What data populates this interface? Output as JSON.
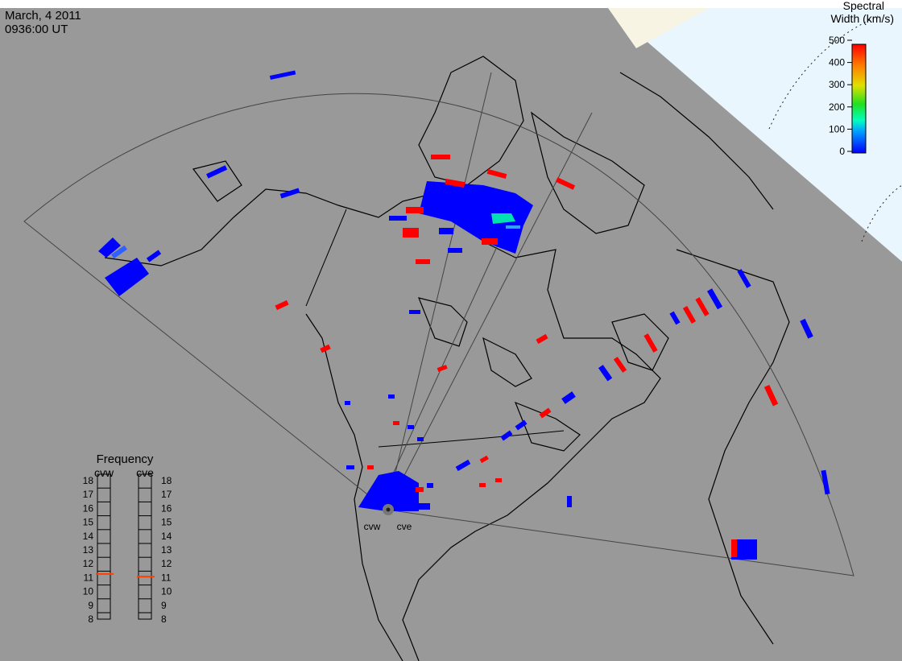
{
  "header": {
    "date": "March, 4 2011",
    "time": "0936:00 UT"
  },
  "colorbar": {
    "title_lines": [
      "Spectral",
      "Width (km/s)"
    ],
    "lim": [
      0,
      500
    ],
    "ticks": [
      0,
      100,
      200,
      300,
      400,
      500
    ]
  },
  "frequency": {
    "title": "Frequency",
    "lim": [
      8,
      18
    ],
    "ticks": [
      8,
      9,
      10,
      11,
      12,
      13,
      14,
      15,
      16,
      17,
      18
    ],
    "radars": [
      {
        "name": "cvw",
        "value": 10.8
      },
      {
        "name": "cve",
        "value": 10.6
      }
    ]
  },
  "sites": [
    "cvw",
    "cve"
  ]
}
